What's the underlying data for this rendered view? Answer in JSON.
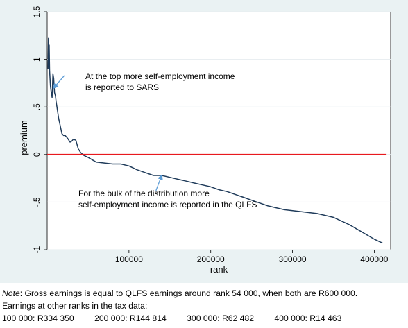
{
  "chart_data": {
    "type": "line",
    "xlabel": "rank",
    "ylabel": "premium",
    "xlim": [
      0,
      420000
    ],
    "ylim": [
      -1,
      1.5
    ],
    "x_ticks": [
      100000,
      200000,
      300000,
      400000
    ],
    "x_tick_labels": [
      "100000",
      "200000",
      "300000",
      "400000"
    ],
    "y_ticks": [
      -1,
      -0.5,
      0,
      0.5,
      1,
      1.5
    ],
    "y_tick_labels": [
      "-1",
      "-.5",
      "0",
      ".5",
      "1",
      "1.5"
    ],
    "grid": "horizontal",
    "series": [
      {
        "color": "#1f3b5a",
        "points": [
          [
            1000,
            0.9
          ],
          [
            1500,
            1.22
          ],
          [
            2000,
            0.95
          ],
          [
            2500,
            1.15
          ],
          [
            3000,
            0.88
          ],
          [
            4000,
            0.72
          ],
          [
            5000,
            0.65
          ],
          [
            6000,
            0.6
          ],
          [
            7000,
            0.85
          ],
          [
            8000,
            0.8
          ],
          [
            9000,
            0.65
          ],
          [
            10000,
            0.62
          ],
          [
            11000,
            0.55
          ],
          [
            12000,
            0.5
          ],
          [
            14000,
            0.38
          ],
          [
            16000,
            0.3
          ],
          [
            18000,
            0.22
          ],
          [
            20000,
            0.2
          ],
          [
            22000,
            0.2
          ],
          [
            25000,
            0.17
          ],
          [
            28000,
            0.13
          ],
          [
            30000,
            0.14
          ],
          [
            32000,
            0.16
          ],
          [
            35000,
            0.15
          ],
          [
            38000,
            0.06
          ],
          [
            41000,
            0.02
          ],
          [
            45000,
            -0.01
          ],
          [
            50000,
            -0.03
          ],
          [
            60000,
            -0.08
          ],
          [
            70000,
            -0.09
          ],
          [
            80000,
            -0.1
          ],
          [
            90000,
            -0.1
          ],
          [
            100000,
            -0.12
          ],
          [
            110000,
            -0.16
          ],
          [
            120000,
            -0.19
          ],
          [
            130000,
            -0.22
          ],
          [
            140000,
            -0.22
          ],
          [
            150000,
            -0.24
          ],
          [
            160000,
            -0.26
          ],
          [
            170000,
            -0.28
          ],
          [
            180000,
            -0.3
          ],
          [
            190000,
            -0.32
          ],
          [
            200000,
            -0.34
          ],
          [
            210000,
            -0.37
          ],
          [
            220000,
            -0.39
          ],
          [
            230000,
            -0.42
          ],
          [
            240000,
            -0.45
          ],
          [
            250000,
            -0.48
          ],
          [
            260000,
            -0.51
          ],
          [
            270000,
            -0.54
          ],
          [
            280000,
            -0.56
          ],
          [
            290000,
            -0.58
          ],
          [
            300000,
            -0.59
          ],
          [
            310000,
            -0.6
          ],
          [
            320000,
            -0.61
          ],
          [
            330000,
            -0.62
          ],
          [
            340000,
            -0.64
          ],
          [
            350000,
            -0.66
          ],
          [
            360000,
            -0.7
          ],
          [
            370000,
            -0.74
          ],
          [
            380000,
            -0.79
          ],
          [
            390000,
            -0.84
          ],
          [
            400000,
            -0.89
          ],
          [
            410000,
            -0.93
          ]
        ]
      },
      {
        "color": "#e8191e",
        "points": [
          [
            0,
            0
          ],
          [
            415000,
            0
          ]
        ]
      }
    ],
    "annotations": [
      {
        "lines": [
          "At the top more self-employment income",
          "is reported to SARS"
        ],
        "target": [
          8000,
          0.7
        ],
        "arrow_from": [
          21000,
          0.83
        ]
      },
      {
        "lines": [
          "For the bulk of the distribution more",
          "self-employment income is reported in the QLFS"
        ],
        "target": [
          140000,
          -0.22
        ],
        "arrow_from": [
          133000,
          -0.38
        ]
      }
    ]
  },
  "note": {
    "label": "Note",
    "text": ": Gross earnings is equal to QLFS earnings around rank 54 000, when both are R600 000.",
    "line2": "Earnings at other ranks in the tax data:",
    "tax_values": [
      "100 000: R334 350",
      "200 000: R144 814",
      "300 000: R62 482",
      "400 000: R14 463"
    ]
  }
}
